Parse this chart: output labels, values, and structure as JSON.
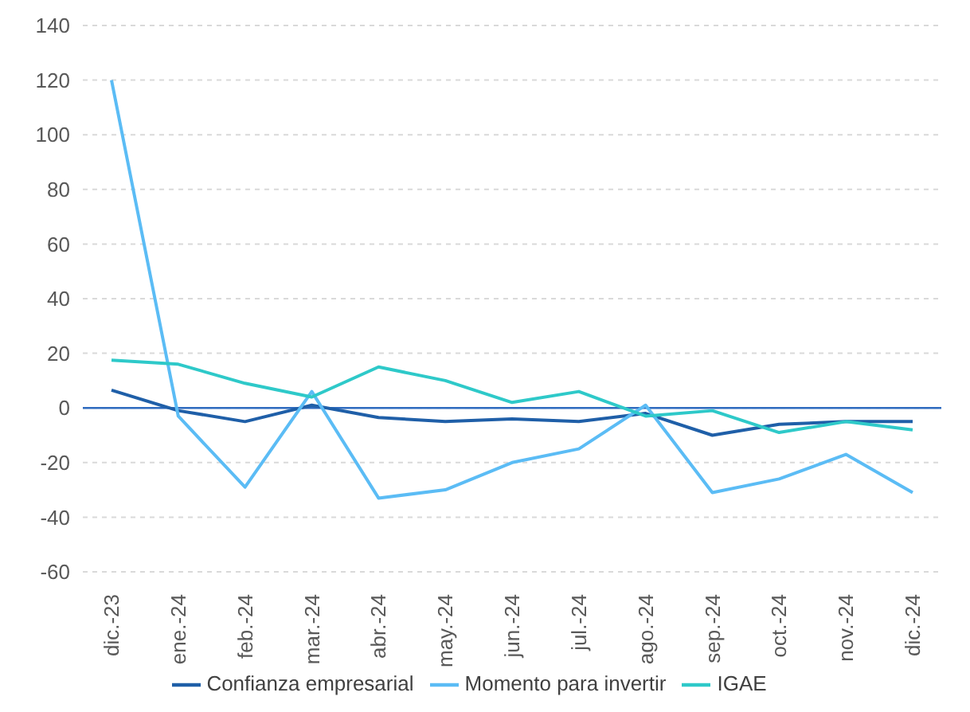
{
  "chart_data": {
    "type": "line",
    "categories": [
      "dic.-23",
      "ene.-24",
      "feb.-24",
      "mar.-24",
      "abr.-24",
      "may.-24",
      "jun.-24",
      "jul.-24",
      "ago.-24",
      "sep.-24",
      "oct.-24",
      "nov.-24",
      "dic.-24"
    ],
    "series": [
      {
        "name": "Confianza empresarial",
        "color": "#1f5fa8",
        "values": [
          6.5,
          -1,
          -5,
          1,
          -3.5,
          -5,
          -4,
          -5,
          -2,
          -10,
          -6,
          -5,
          -5
        ]
      },
      {
        "name": "Momento para invertir",
        "color": "#5bbcf5",
        "values": [
          120,
          -3,
          -29,
          6,
          -33,
          -30,
          -20,
          -15,
          1,
          -31,
          -26,
          -17,
          -31
        ]
      },
      {
        "name": "IGAE",
        "color": "#2ec9c9",
        "values": [
          17.5,
          16,
          9,
          4,
          15,
          10,
          2,
          6,
          -3,
          -1,
          -9,
          -5,
          -8
        ]
      }
    ],
    "ylim": [
      -60,
      140
    ],
    "yticks": [
      -60,
      -40,
      -20,
      0,
      20,
      40,
      60,
      80,
      100,
      120,
      140
    ],
    "grid": "y",
    "legend": "bottom",
    "marker": "none",
    "line_style": "solid",
    "ref_lines": [
      {
        "axis": "y",
        "value": 0,
        "color": "#2e6bbf"
      }
    ]
  }
}
